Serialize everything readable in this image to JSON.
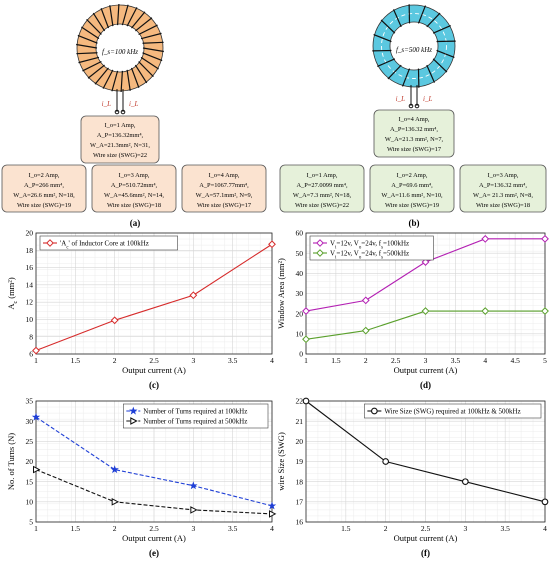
{
  "toroid_a": {
    "freq_label": "f_s=100 kHz",
    "current_label": "i_L",
    "main_box": [
      "I_o=1 Amp,",
      "A_P=136.32mm⁴,",
      "W_A=21.3mm², N=31,",
      "Wire size (SWG)=22"
    ],
    "sub_boxes": [
      [
        "I_o=2 Amp,",
        "A_P=266 mm⁴,",
        "W_A=26.6 mm², N=18,",
        "Wire size (SWG)=19"
      ],
      [
        "I_o=3 Amp,",
        "A_P=510.72mm⁴,",
        "W_A=45.6mm², N=14,",
        "Wire size (SWG)=18"
      ],
      [
        "I_o=4 Amp,",
        "A_P=1067.77mm⁴,",
        "W_A=57.1mm², N=9,",
        "Wire size (SWG)=17"
      ]
    ],
    "caption": "(a)"
  },
  "toroid_b": {
    "freq_label": "f_s=500 kHz",
    "current_label": "i_L",
    "main_box": [
      "I_o=4 Amp,",
      "A_P=136.32 mm⁴,",
      "W_A=21.3 mm², N=7,",
      "Wire size (SWG)=17"
    ],
    "sub_boxes": [
      [
        "I_o=1 Amp,",
        "A_P=27.0099 mm⁴,",
        "W_A=7.3 mm², N=18,",
        "Wire size (SWG)=22"
      ],
      [
        "I_o=2 Amp,",
        "A_P=69.6 mm⁴,",
        "W_A=11.6 mm², N=10,",
        "Wire size (SWG)=19"
      ],
      [
        "I_o=3 Amp,",
        "A_P=136.32 mm⁴,",
        "W_A= 21.3 mm², N=8,",
        "Wire size (SWG)=18"
      ]
    ],
    "caption": "(b)"
  },
  "colors": {
    "core_a": "#f5b97f",
    "core_b": "#5bc8e0",
    "box_a": "#fbe3d0",
    "box_b": "#e6f1da",
    "red": "#d62b2b",
    "magenta": "#b31fb3",
    "green": "#5aa02c",
    "blue": "#1f3fd6",
    "black": "#111111"
  },
  "chart_data": [
    {
      "id": "c",
      "type": "line",
      "caption": "(c)",
      "xlabel": "Output current (A)",
      "ylabel": "A_c (mm²)",
      "xlim": [
        1,
        4
      ],
      "ylim": [
        6,
        20
      ],
      "xticks": [
        "1",
        "1.5",
        "2",
        "2.5",
        "3",
        "3.5",
        "4"
      ],
      "yticks": [
        "6",
        "8",
        "10",
        "12",
        "14",
        "16",
        "18",
        "20"
      ],
      "legend_pos": "top-left",
      "grid": true,
      "series": [
        {
          "name": "'A_c' of Inductor Core at 100kHz",
          "x": [
            1,
            2,
            3,
            4
          ],
          "y": [
            6.4,
            9.9,
            12.8,
            18.7
          ],
          "color": "#d62b2b",
          "marker": "diamond",
          "dash": false
        }
      ]
    },
    {
      "id": "d",
      "type": "line",
      "caption": "(d)",
      "xlabel": "Output current (A)",
      "ylabel": "Window Area (mm²)",
      "xlim": [
        1,
        5
      ],
      "ylim": [
        0,
        60
      ],
      "xticks": [
        "1",
        "1.5",
        "2",
        "2.5",
        "3",
        "3.5",
        "4",
        "4.5",
        "5"
      ],
      "yticks": [
        "0",
        "10",
        "20",
        "30",
        "40",
        "50",
        "60"
      ],
      "legend_pos": "top-left",
      "grid": true,
      "series": [
        {
          "name": "V_i=12v, V_o=24v, f_s=100kHz",
          "x": [
            1,
            2,
            3,
            4,
            5
          ],
          "y": [
            21.3,
            26.6,
            45.6,
            57.1,
            57.1
          ],
          "color": "#b31fb3",
          "marker": "diamond",
          "dash": false
        },
        {
          "name": "V_i=12v, V_o=24v, f_s=500kHz",
          "x": [
            1,
            2,
            3,
            4,
            5
          ],
          "y": [
            7.3,
            11.6,
            21.3,
            21.3,
            21.3
          ],
          "color": "#5aa02c",
          "marker": "diamond",
          "dash": false
        }
      ]
    },
    {
      "id": "e",
      "type": "line",
      "caption": "(e)",
      "xlabel": "Output current (A)",
      "ylabel": "No. of Turns (N)",
      "xlim": [
        1,
        4
      ],
      "ylim": [
        5,
        35
      ],
      "xticks": [
        "1",
        "1.5",
        "2",
        "2.5",
        "3",
        "3.5",
        "4"
      ],
      "yticks": [
        "5",
        "10",
        "15",
        "20",
        "25",
        "30",
        "35"
      ],
      "legend_pos": "top-right",
      "grid": true,
      "series": [
        {
          "name": "Number of Turns required at 100kHz",
          "x": [
            1,
            2,
            3,
            4
          ],
          "y": [
            31,
            18,
            14,
            9
          ],
          "color": "#1f3fd6",
          "marker": "star",
          "dash": true
        },
        {
          "name": "Number of Turns required at 500kHz",
          "x": [
            1,
            2,
            3,
            4
          ],
          "y": [
            18,
            10,
            8,
            7
          ],
          "color": "#111111",
          "marker": "triangle",
          "dash": true
        }
      ]
    },
    {
      "id": "f",
      "type": "line",
      "caption": "(f)",
      "xlabel": "Output current (A)",
      "ylabel": "wire Size (SWG)",
      "xlim": [
        1,
        4
      ],
      "ylim": [
        16,
        22
      ],
      "xticks": [
        "1.5",
        "2",
        "2.5",
        "3",
        "3.5",
        "4"
      ],
      "yticks": [
        "16",
        "17",
        "18",
        "19",
        "20",
        "21",
        "22"
      ],
      "legend_pos": "top-right",
      "grid": true,
      "series": [
        {
          "name": "Wire Size (SWG) required at 100kHz & 500kHz",
          "x": [
            1,
            2,
            3,
            4
          ],
          "y": [
            22,
            19,
            18,
            17
          ],
          "color": "#111111",
          "marker": "circle",
          "dash": false
        }
      ]
    }
  ]
}
